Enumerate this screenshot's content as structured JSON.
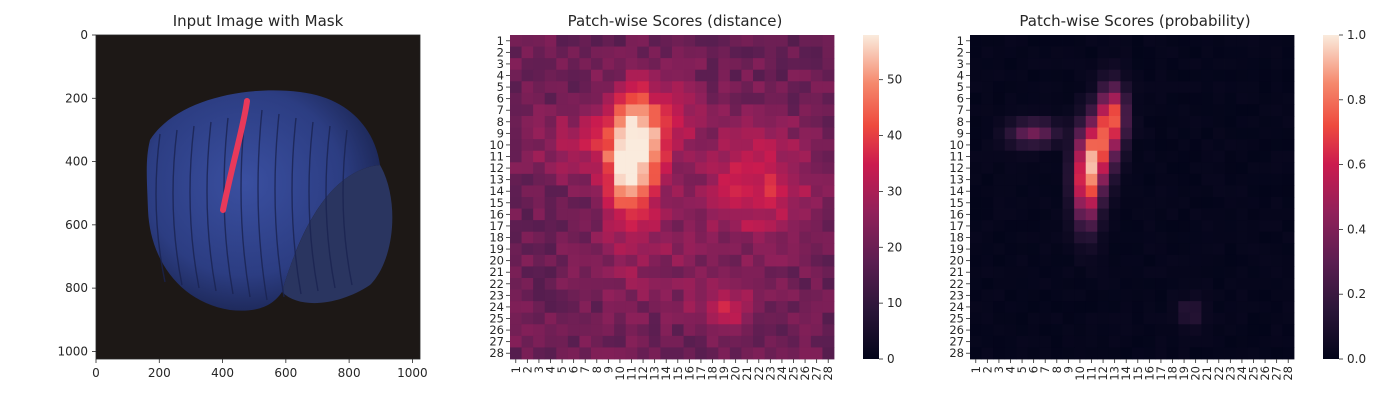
{
  "chart_data": [
    {
      "type": "image",
      "title": "Input Image with Mask",
      "xlabel": "",
      "ylabel": "",
      "xlim": [
        0,
        1024
      ],
      "ylim": [
        1024,
        0
      ],
      "xticks": [
        0,
        200,
        400,
        600,
        800,
        1000
      ],
      "yticks": [
        0,
        200,
        400,
        600,
        800,
        1000
      ],
      "content": "hazelnut with red mask stroke",
      "mask": {
        "x": [
          470,
          385
        ],
        "y": [
          210,
          560
        ]
      }
    },
    {
      "type": "heatmap",
      "title": "Patch-wise Scores (distance)",
      "xlabel": "",
      "ylabel": "",
      "grid_size": 28,
      "colorbar": {
        "min": 0,
        "max": 58,
        "ticks": [
          0,
          10,
          20,
          30,
          40,
          50
        ]
      },
      "colormap": "rocket",
      "values_description": "28x28 patch scores, peak about 58 near rows 10-16, cols 10-12"
    },
    {
      "type": "heatmap",
      "title": "Patch-wise Scores (probability)",
      "xlabel": "",
      "ylabel": "",
      "grid_size": 28,
      "colorbar": {
        "min": 0.0,
        "max": 1.0,
        "ticks": [
          "0.0",
          "0.2",
          "0.4",
          "0.6",
          "0.8",
          "1.0"
        ]
      },
      "colormap": "rocket",
      "values_description": "28x28 probabilities, high values along a vertical stroke at cols 10-13, rows 5-16"
    }
  ]
}
